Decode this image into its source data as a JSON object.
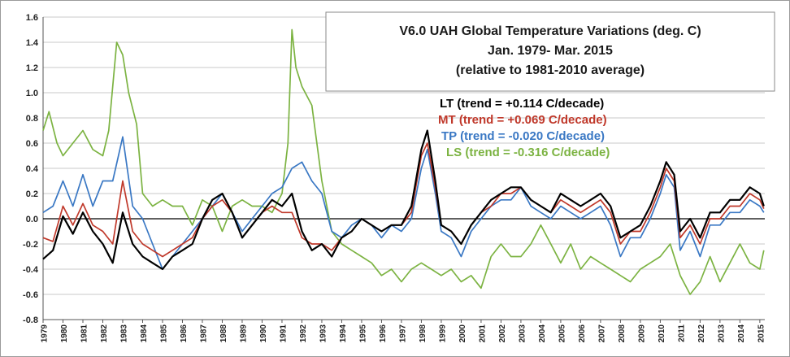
{
  "colors": {
    "LT": "#000000",
    "MT": "#c0392b",
    "TP": "#3a78c4",
    "LS": "#7cb342",
    "zero_line": "#000000",
    "grid": "#c8c8c8"
  },
  "chart_data": {
    "type": "line",
    "title_lines": [
      "V6.0 UAH Global Temperature Variations (deg. C)",
      "Jan. 1979- Mar. 2015",
      "(relative to 1981-2010 average)"
    ],
    "xlabel": "",
    "ylabel": "",
    "xlim": [
      1979.0,
      2015.25
    ],
    "ylim": [
      -0.8,
      1.6
    ],
    "y_ticks": [
      "1.6",
      "1.4",
      "1.2",
      "1.0",
      "0.8",
      "0.6",
      "0.4",
      "0.2",
      "0.0",
      "-0.2",
      "-0.4",
      "-0.6",
      "-0.8"
    ],
    "x_ticks": [
      "1979",
      "1980",
      "1981",
      "1982",
      "1983",
      "1984",
      "1985",
      "1986",
      "1987",
      "1988",
      "1989",
      "1990",
      "1991",
      "1992",
      "1993",
      "1994",
      "1995",
      "1996",
      "1997",
      "1998",
      "1999",
      "2000",
      "2001",
      "2002",
      "2003",
      "2004",
      "2005",
      "2006",
      "2007",
      "2008",
      "2009",
      "2010",
      "2011",
      "2012",
      "2013",
      "2014",
      "2015"
    ],
    "grid": "horizontal",
    "legend_position": "top-right",
    "series": [
      {
        "name": "LT",
        "legend_label": "LT (trend = +0.114 C/decade)",
        "x": [
          1979.0,
          1979.5,
          1980.0,
          1980.5,
          1981.0,
          1981.5,
          1982.0,
          1982.5,
          1983.0,
          1983.5,
          1984.0,
          1984.5,
          1985.0,
          1985.5,
          1986.0,
          1986.5,
          1987.0,
          1987.5,
          1988.0,
          1988.5,
          1989.0,
          1989.5,
          1990.0,
          1990.5,
          1991.0,
          1991.5,
          1992.0,
          1992.5,
          1993.0,
          1993.5,
          1994.0,
          1994.5,
          1995.0,
          1995.5,
          1996.0,
          1996.5,
          1997.0,
          1997.5,
          1998.0,
          1998.3,
          1998.7,
          1999.0,
          1999.5,
          2000.0,
          2000.5,
          2001.0,
          2001.5,
          2002.0,
          2002.5,
          2003.0,
          2003.5,
          2004.0,
          2004.5,
          2005.0,
          2005.5,
          2006.0,
          2006.5,
          2007.0,
          2007.5,
          2008.0,
          2008.5,
          2009.0,
          2009.5,
          2010.0,
          2010.3,
          2010.7,
          2011.0,
          2011.5,
          2012.0,
          2012.5,
          2013.0,
          2013.5,
          2014.0,
          2014.5,
          2015.0,
          2015.2
        ],
        "values": [
          -0.32,
          -0.25,
          0.02,
          -0.12,
          0.05,
          -0.1,
          -0.2,
          -0.35,
          0.05,
          -0.2,
          -0.3,
          -0.35,
          -0.4,
          -0.3,
          -0.25,
          -0.2,
          0.0,
          0.15,
          0.2,
          0.05,
          -0.15,
          -0.05,
          0.05,
          0.15,
          0.1,
          0.2,
          -0.1,
          -0.25,
          -0.2,
          -0.3,
          -0.15,
          -0.1,
          0.0,
          -0.05,
          -0.1,
          -0.05,
          -0.05,
          0.1,
          0.55,
          0.7,
          0.3,
          -0.05,
          -0.1,
          -0.2,
          -0.05,
          0.05,
          0.15,
          0.2,
          0.25,
          0.25,
          0.15,
          0.1,
          0.05,
          0.2,
          0.15,
          0.1,
          0.15,
          0.2,
          0.1,
          -0.15,
          -0.1,
          -0.05,
          0.1,
          0.3,
          0.45,
          0.35,
          -0.1,
          0.0,
          -0.15,
          0.05,
          0.05,
          0.15,
          0.15,
          0.25,
          0.2,
          0.1
        ]
      },
      {
        "name": "MT",
        "legend_label": "MT (trend = +0.069 C/decade)",
        "x": [
          1979.0,
          1979.5,
          1980.0,
          1980.5,
          1981.0,
          1981.5,
          1982.0,
          1982.5,
          1983.0,
          1983.5,
          1984.0,
          1984.5,
          1985.0,
          1985.5,
          1986.0,
          1986.5,
          1987.0,
          1987.5,
          1988.0,
          1988.5,
          1989.0,
          1989.5,
          1990.0,
          1990.5,
          1991.0,
          1991.5,
          1992.0,
          1992.5,
          1993.0,
          1993.5,
          1994.0,
          1994.5,
          1995.0,
          1995.5,
          1996.0,
          1996.5,
          1997.0,
          1997.5,
          1998.0,
          1998.3,
          1998.7,
          1999.0,
          1999.5,
          2000.0,
          2000.5,
          2001.0,
          2001.5,
          2002.0,
          2002.5,
          2003.0,
          2003.5,
          2004.0,
          2004.5,
          2005.0,
          2005.5,
          2006.0,
          2006.5,
          2007.0,
          2007.5,
          2008.0,
          2008.5,
          2009.0,
          2009.5,
          2010.0,
          2010.3,
          2010.7,
          2011.0,
          2011.5,
          2012.0,
          2012.5,
          2013.0,
          2013.5,
          2014.0,
          2014.5,
          2015.0,
          2015.2
        ],
        "values": [
          -0.15,
          -0.18,
          0.1,
          -0.05,
          0.12,
          -0.05,
          -0.1,
          -0.2,
          0.3,
          -0.1,
          -0.2,
          -0.25,
          -0.3,
          -0.25,
          -0.2,
          -0.15,
          0.0,
          0.1,
          0.15,
          0.05,
          -0.15,
          -0.05,
          0.05,
          0.1,
          0.05,
          0.05,
          -0.15,
          -0.2,
          -0.2,
          -0.25,
          -0.15,
          -0.1,
          0.0,
          -0.05,
          -0.1,
          -0.05,
          -0.05,
          0.05,
          0.5,
          0.6,
          0.25,
          -0.05,
          -0.1,
          -0.2,
          -0.05,
          0.05,
          0.1,
          0.2,
          0.2,
          0.25,
          0.15,
          0.1,
          0.05,
          0.15,
          0.1,
          0.05,
          0.1,
          0.15,
          0.05,
          -0.2,
          -0.1,
          -0.1,
          0.05,
          0.25,
          0.4,
          0.3,
          -0.15,
          -0.05,
          -0.2,
          0.0,
          0.0,
          0.1,
          0.1,
          0.2,
          0.15,
          0.08
        ]
      },
      {
        "name": "TP",
        "legend_label": "TP (trend = -0.020 C/decade)",
        "x": [
          1979.0,
          1979.5,
          1980.0,
          1980.5,
          1981.0,
          1981.5,
          1982.0,
          1982.5,
          1983.0,
          1983.5,
          1984.0,
          1984.5,
          1985.0,
          1985.5,
          1986.0,
          1986.5,
          1987.0,
          1987.5,
          1988.0,
          1988.5,
          1989.0,
          1989.5,
          1990.0,
          1990.5,
          1991.0,
          1991.5,
          1992.0,
          1992.5,
          1993.0,
          1993.5,
          1994.0,
          1994.5,
          1995.0,
          1995.5,
          1996.0,
          1996.5,
          1997.0,
          1997.5,
          1998.0,
          1998.3,
          1998.7,
          1999.0,
          1999.5,
          2000.0,
          2000.5,
          2001.0,
          2001.5,
          2002.0,
          2002.5,
          2003.0,
          2003.5,
          2004.0,
          2004.5,
          2005.0,
          2005.5,
          2006.0,
          2006.5,
          2007.0,
          2007.5,
          2008.0,
          2008.5,
          2009.0,
          2009.5,
          2010.0,
          2010.3,
          2010.7,
          2011.0,
          2011.5,
          2012.0,
          2012.5,
          2013.0,
          2013.5,
          2014.0,
          2014.5,
          2015.0,
          2015.2
        ],
        "values": [
          0.05,
          0.1,
          0.3,
          0.1,
          0.35,
          0.1,
          0.3,
          0.3,
          0.65,
          0.1,
          0.0,
          -0.2,
          -0.4,
          -0.3,
          -0.2,
          -0.1,
          0.0,
          0.1,
          0.2,
          0.05,
          -0.1,
          0.0,
          0.1,
          0.2,
          0.25,
          0.4,
          0.45,
          0.3,
          0.2,
          -0.1,
          -0.15,
          -0.05,
          0.0,
          -0.05,
          -0.15,
          -0.05,
          -0.1,
          0.0,
          0.4,
          0.55,
          0.2,
          -0.1,
          -0.15,
          -0.3,
          -0.1,
          0.0,
          0.1,
          0.15,
          0.15,
          0.25,
          0.1,
          0.05,
          0.0,
          0.1,
          0.05,
          0.0,
          0.05,
          0.1,
          -0.05,
          -0.3,
          -0.15,
          -0.15,
          0.0,
          0.2,
          0.35,
          0.25,
          -0.25,
          -0.1,
          -0.3,
          -0.05,
          -0.05,
          0.05,
          0.05,
          0.15,
          0.1,
          0.05
        ]
      },
      {
        "name": "LS",
        "legend_label": "LS (trend = -0.316 C/decade)",
        "x": [
          1979.0,
          1979.3,
          1979.7,
          1980.0,
          1980.5,
          1981.0,
          1981.5,
          1982.0,
          1982.3,
          1982.7,
          1983.0,
          1983.3,
          1983.7,
          1984.0,
          1984.5,
          1985.0,
          1985.5,
          1986.0,
          1986.5,
          1987.0,
          1987.5,
          1988.0,
          1988.5,
          1989.0,
          1989.5,
          1990.0,
          1990.5,
          1991.0,
          1991.3,
          1991.5,
          1991.7,
          1992.0,
          1992.5,
          1993.0,
          1993.5,
          1994.0,
          1994.5,
          1995.0,
          1995.5,
          1996.0,
          1996.5,
          1997.0,
          1997.5,
          1998.0,
          1998.5,
          1999.0,
          1999.5,
          2000.0,
          2000.5,
          2001.0,
          2001.5,
          2002.0,
          2002.5,
          2003.0,
          2003.5,
          2004.0,
          2004.5,
          2005.0,
          2005.5,
          2006.0,
          2006.5,
          2007.0,
          2007.5,
          2008.0,
          2008.5,
          2009.0,
          2009.5,
          2010.0,
          2010.5,
          2011.0,
          2011.5,
          2012.0,
          2012.5,
          2013.0,
          2013.5,
          2014.0,
          2014.5,
          2015.0,
          2015.2
        ],
        "values": [
          0.7,
          0.85,
          0.6,
          0.5,
          0.6,
          0.7,
          0.55,
          0.5,
          0.7,
          1.4,
          1.3,
          1.0,
          0.75,
          0.2,
          0.1,
          0.15,
          0.1,
          0.1,
          -0.05,
          0.15,
          0.1,
          -0.1,
          0.1,
          0.15,
          0.1,
          0.1,
          0.05,
          0.2,
          0.6,
          1.5,
          1.2,
          1.05,
          0.9,
          0.3,
          -0.1,
          -0.2,
          -0.25,
          -0.3,
          -0.35,
          -0.45,
          -0.4,
          -0.5,
          -0.4,
          -0.35,
          -0.4,
          -0.45,
          -0.4,
          -0.5,
          -0.45,
          -0.55,
          -0.3,
          -0.2,
          -0.3,
          -0.3,
          -0.2,
          -0.05,
          -0.2,
          -0.35,
          -0.2,
          -0.4,
          -0.3,
          -0.35,
          -0.4,
          -0.45,
          -0.5,
          -0.4,
          -0.35,
          -0.3,
          -0.2,
          -0.45,
          -0.6,
          -0.5,
          -0.3,
          -0.5,
          -0.35,
          -0.2,
          -0.35,
          -0.4,
          -0.25
        ]
      }
    ]
  }
}
